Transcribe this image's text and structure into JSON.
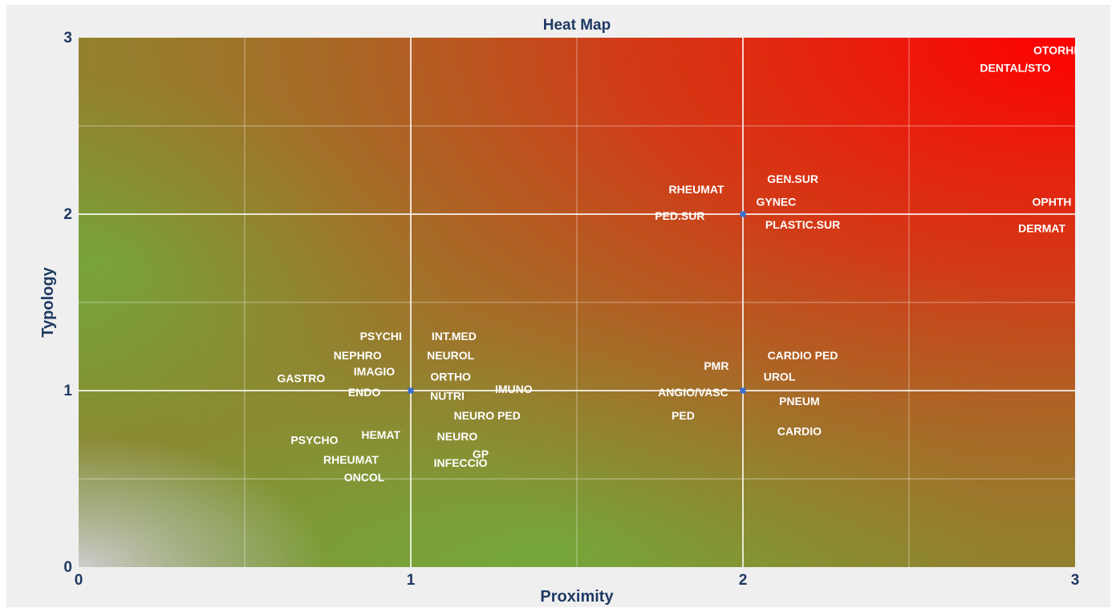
{
  "chart_data": {
    "type": "scatter",
    "title": "Heat Map",
    "xlabel": "Proximity",
    "ylabel": "Typology",
    "xlim": [
      0,
      3
    ],
    "ylim": [
      0,
      3
    ],
    "x_ticks": [
      "0",
      "1",
      "2",
      "3"
    ],
    "y_ticks": [
      "0",
      "1",
      "2",
      "3"
    ],
    "grid": true,
    "background": "gradient heat map: grey-white at origin, green through middle, red at top-right",
    "colors": {
      "low": "#c4c4c4",
      "mid": "#70b243",
      "high": "#ff0000",
      "marker": "#3a6fd0",
      "text": "#1f3a63"
    },
    "points": [
      {
        "x": 1,
        "y": 1
      },
      {
        "x": 2,
        "y": 2
      },
      {
        "x": 2,
        "y": 1
      }
    ],
    "annotations": [
      {
        "text": "OTORHI",
        "x": 2.94,
        "y": 2.93
      },
      {
        "text": "DENTAL/STO",
        "x": 2.82,
        "y": 2.83
      },
      {
        "text": "GEN.SUR",
        "x": 2.15,
        "y": 2.2
      },
      {
        "text": "RHEUMAT",
        "x": 1.86,
        "y": 2.14
      },
      {
        "text": "GYNEC",
        "x": 2.1,
        "y": 2.07
      },
      {
        "text": "OPHTH",
        "x": 2.93,
        "y": 2.07
      },
      {
        "text": "PED.SUR",
        "x": 1.81,
        "y": 1.99
      },
      {
        "text": "PLASTIC.SUR",
        "x": 2.18,
        "y": 1.94
      },
      {
        "text": "DERMAT",
        "x": 2.9,
        "y": 1.92
      },
      {
        "text": "PSYCHI",
        "x": 0.91,
        "y": 1.31
      },
      {
        "text": "INT.MED",
        "x": 1.13,
        "y": 1.31
      },
      {
        "text": "NEPHRO",
        "x": 0.84,
        "y": 1.2
      },
      {
        "text": "NEUROL",
        "x": 1.12,
        "y": 1.2
      },
      {
        "text": "PMR",
        "x": 1.92,
        "y": 1.14
      },
      {
        "text": "CARDIO PED",
        "x": 2.18,
        "y": 1.2
      },
      {
        "text": "GASTRO",
        "x": 0.67,
        "y": 1.07
      },
      {
        "text": "IMAGIO",
        "x": 0.89,
        "y": 1.11
      },
      {
        "text": "ORTHO",
        "x": 1.12,
        "y": 1.08
      },
      {
        "text": "UROL",
        "x": 2.11,
        "y": 1.08
      },
      {
        "text": "ENDO",
        "x": 0.86,
        "y": 0.99
      },
      {
        "text": "NUTRI",
        "x": 1.11,
        "y": 0.97
      },
      {
        "text": "IMUNO",
        "x": 1.31,
        "y": 1.01
      },
      {
        "text": "ANGIO/VASC",
        "x": 1.85,
        "y": 0.99
      },
      {
        "text": "PNEUM",
        "x": 2.17,
        "y": 0.94
      },
      {
        "text": "NEURO PED",
        "x": 1.23,
        "y": 0.86
      },
      {
        "text": "PED",
        "x": 1.82,
        "y": 0.86
      },
      {
        "text": "HEMAT",
        "x": 0.91,
        "y": 0.75
      },
      {
        "text": "NEURO",
        "x": 1.14,
        "y": 0.74
      },
      {
        "text": "PSYCHO",
        "x": 0.71,
        "y": 0.72
      },
      {
        "text": "CARDIO",
        "x": 2.17,
        "y": 0.77
      },
      {
        "text": "GP",
        "x": 1.21,
        "y": 0.64
      },
      {
        "text": "RHEUMAT",
        "x": 0.82,
        "y": 0.61
      },
      {
        "text": "INFECCIO",
        "x": 1.15,
        "y": 0.59
      },
      {
        "text": "ONCOL",
        "x": 0.86,
        "y": 0.51
      }
    ]
  }
}
